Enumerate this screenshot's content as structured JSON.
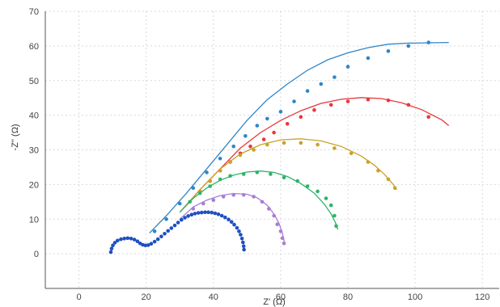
{
  "chart_data": {
    "type": "scatter",
    "title": "",
    "xlabel": "Z' (Ω)",
    "ylabel": "-Z'' (Ω)",
    "xlim": [
      -10,
      125
    ],
    "ylim": [
      -10,
      70
    ],
    "xticks": [
      0,
      20,
      40,
      60,
      80,
      100,
      120
    ],
    "yticks": [
      0,
      10,
      20,
      30,
      40,
      50,
      60,
      70
    ],
    "grid": true,
    "series": [
      {
        "color": "#2e86c8",
        "points": [
          [
            22.5,
            6.5
          ],
          [
            26,
            10
          ],
          [
            30,
            14.5
          ],
          [
            34,
            19
          ],
          [
            38,
            23.5
          ],
          [
            42,
            27.5
          ],
          [
            46,
            31
          ],
          [
            49.5,
            34
          ],
          [
            53,
            37
          ],
          [
            56,
            39
          ],
          [
            60,
            41
          ],
          [
            64,
            44
          ],
          [
            68,
            47
          ],
          [
            72,
            49
          ],
          [
            76,
            51
          ],
          [
            80,
            54
          ],
          [
            86,
            56.5
          ],
          [
            92,
            58.5
          ],
          [
            98,
            60
          ],
          [
            104,
            61
          ]
        ],
        "fit": [
          [
            21,
            6
          ],
          [
            26,
            11
          ],
          [
            32,
            17.5
          ],
          [
            38,
            24.5
          ],
          [
            44,
            31.5
          ],
          [
            50,
            38.5
          ],
          [
            56,
            44.5
          ],
          [
            62,
            49
          ],
          [
            68,
            53
          ],
          [
            74,
            56
          ],
          [
            80,
            58
          ],
          [
            86,
            59.5
          ],
          [
            92,
            60.5
          ],
          [
            98,
            60.8
          ],
          [
            104,
            60.9
          ],
          [
            110,
            61
          ]
        ]
      },
      {
        "color": "#e8383d",
        "points": [
          [
            36,
            18
          ],
          [
            39,
            21
          ],
          [
            42,
            24
          ],
          [
            45,
            26.5
          ],
          [
            48,
            29
          ],
          [
            51,
            31
          ],
          [
            55,
            33
          ],
          [
            58,
            35
          ],
          [
            62,
            37.5
          ],
          [
            66,
            39.5
          ],
          [
            70,
            41.5
          ],
          [
            75,
            43
          ],
          [
            80,
            44
          ],
          [
            86,
            44.5
          ],
          [
            92,
            44.3
          ],
          [
            98,
            43
          ],
          [
            104,
            39.5
          ]
        ],
        "fit": [
          [
            30,
            12
          ],
          [
            36,
            18.5
          ],
          [
            42,
            24.5
          ],
          [
            48,
            30.5
          ],
          [
            54,
            35
          ],
          [
            60,
            38.5
          ],
          [
            66,
            41.3
          ],
          [
            72,
            43.4
          ],
          [
            78,
            44.6
          ],
          [
            84,
            45.1
          ],
          [
            90,
            44.8
          ],
          [
            96,
            43.6
          ],
          [
            102,
            41.6
          ],
          [
            108,
            38.6
          ],
          [
            110,
            37
          ]
        ]
      },
      {
        "color": "#c9a227",
        "points": [
          [
            36,
            18
          ],
          [
            39,
            21
          ],
          [
            42,
            24
          ],
          [
            45,
            26.5
          ],
          [
            48,
            28.5
          ],
          [
            52,
            30
          ],
          [
            56,
            31.5
          ],
          [
            61,
            32
          ],
          [
            66,
            32
          ],
          [
            71,
            31.5
          ],
          [
            76,
            30.5
          ],
          [
            81,
            29
          ],
          [
            86,
            26.5
          ],
          [
            89,
            24
          ],
          [
            92,
            21.5
          ],
          [
            94,
            19
          ]
        ],
        "fit": [
          [
            30,
            12
          ],
          [
            36,
            18.5
          ],
          [
            42,
            24.5
          ],
          [
            48,
            28.8
          ],
          [
            54,
            31.5
          ],
          [
            60,
            32.9
          ],
          [
            66,
            33.2
          ],
          [
            72,
            32.6
          ],
          [
            78,
            31
          ],
          [
            84,
            28.2
          ],
          [
            88,
            25.5
          ],
          [
            91,
            22.8
          ],
          [
            93.5,
            20
          ],
          [
            94.5,
            18.5
          ]
        ]
      },
      {
        "color": "#2fb36a",
        "points": [
          [
            33,
            15
          ],
          [
            36,
            17.5
          ],
          [
            39,
            19.5
          ],
          [
            42,
            21.5
          ],
          [
            45,
            22.5
          ],
          [
            49,
            23
          ],
          [
            53,
            23.5
          ],
          [
            57,
            23
          ],
          [
            61,
            22
          ],
          [
            65,
            21
          ],
          [
            68,
            19.5
          ],
          [
            71,
            18
          ],
          [
            73.5,
            16
          ],
          [
            75,
            14
          ],
          [
            76,
            11
          ],
          [
            76.5,
            8
          ]
        ],
        "fit": [
          [
            30,
            12
          ],
          [
            34,
            16
          ],
          [
            38,
            19
          ],
          [
            42,
            21.2
          ],
          [
            46,
            22.7
          ],
          [
            50,
            23.6
          ],
          [
            54,
            23.9
          ],
          [
            58,
            23.5
          ],
          [
            62,
            22.3
          ],
          [
            66,
            20.3
          ],
          [
            70,
            17.5
          ],
          [
            73,
            14.3
          ],
          [
            75,
            11.5
          ],
          [
            76.3,
            9
          ],
          [
            77,
            7
          ]
        ]
      },
      {
        "color": "#a77ed6",
        "points": [
          [
            34,
            13
          ],
          [
            37,
            14.5
          ],
          [
            40,
            15.5
          ],
          [
            43,
            16.5
          ],
          [
            46,
            17
          ],
          [
            49,
            17
          ],
          [
            52,
            16.5
          ],
          [
            54.5,
            15
          ],
          [
            56.5,
            13
          ],
          [
            58,
            11
          ],
          [
            59,
            8.5
          ],
          [
            60,
            6.5
          ],
          [
            60.5,
            4.5
          ],
          [
            61,
            3
          ]
        ],
        "fit": [
          [
            30,
            10
          ],
          [
            34,
            13.5
          ],
          [
            38,
            15.5
          ],
          [
            42,
            16.8
          ],
          [
            46,
            17.4
          ],
          [
            50,
            17.2
          ],
          [
            53,
            16.2
          ],
          [
            56,
            14
          ],
          [
            58,
            11.5
          ],
          [
            59.5,
            8.8
          ],
          [
            60.5,
            6
          ],
          [
            61.2,
            3
          ]
        ]
      },
      {
        "color": "#1f4fbf",
        "points": [
          [
            9.5,
            0.5
          ],
          [
            9.7,
            1.5
          ],
          [
            10.1,
            2.4
          ],
          [
            10.7,
            3.2
          ],
          [
            11.5,
            3.8
          ],
          [
            12.5,
            4.2
          ],
          [
            13.5,
            4.4
          ],
          [
            14.5,
            4.5
          ],
          [
            15.5,
            4.4
          ],
          [
            16.5,
            4.1
          ],
          [
            17.4,
            3.6
          ],
          [
            18.2,
            3
          ],
          [
            19,
            2.6
          ],
          [
            19.8,
            2.4
          ],
          [
            20.6,
            2.5
          ],
          [
            21.5,
            2.9
          ],
          [
            22.5,
            3.5
          ],
          [
            23.5,
            4.2
          ],
          [
            24.5,
            5
          ],
          [
            25.5,
            5.8
          ],
          [
            26.5,
            6.6
          ],
          [
            27.5,
            7.4
          ],
          [
            28.5,
            8.2
          ],
          [
            29.5,
            9
          ],
          [
            30.5,
            9.8
          ],
          [
            31.5,
            10.4
          ],
          [
            32.5,
            10.9
          ],
          [
            33.5,
            11.3
          ],
          [
            34.5,
            11.6
          ],
          [
            35.5,
            11.8
          ],
          [
            36.5,
            11.9
          ],
          [
            37.5,
            12
          ],
          [
            38.5,
            12
          ],
          [
            39.5,
            11.9
          ],
          [
            40.5,
            11.7
          ],
          [
            41.5,
            11.4
          ],
          [
            42.5,
            11
          ],
          [
            43.5,
            10.5
          ],
          [
            44.5,
            9.9
          ],
          [
            45.4,
            9.2
          ],
          [
            46.2,
            8.4
          ],
          [
            47,
            7.5
          ],
          [
            47.6,
            6.5
          ],
          [
            48.1,
            5.5
          ],
          [
            48.5,
            4.4
          ],
          [
            48.8,
            3.3
          ],
          [
            49,
            2.2
          ],
          [
            49.1,
            1.2
          ]
        ],
        "fit": []
      }
    ]
  }
}
